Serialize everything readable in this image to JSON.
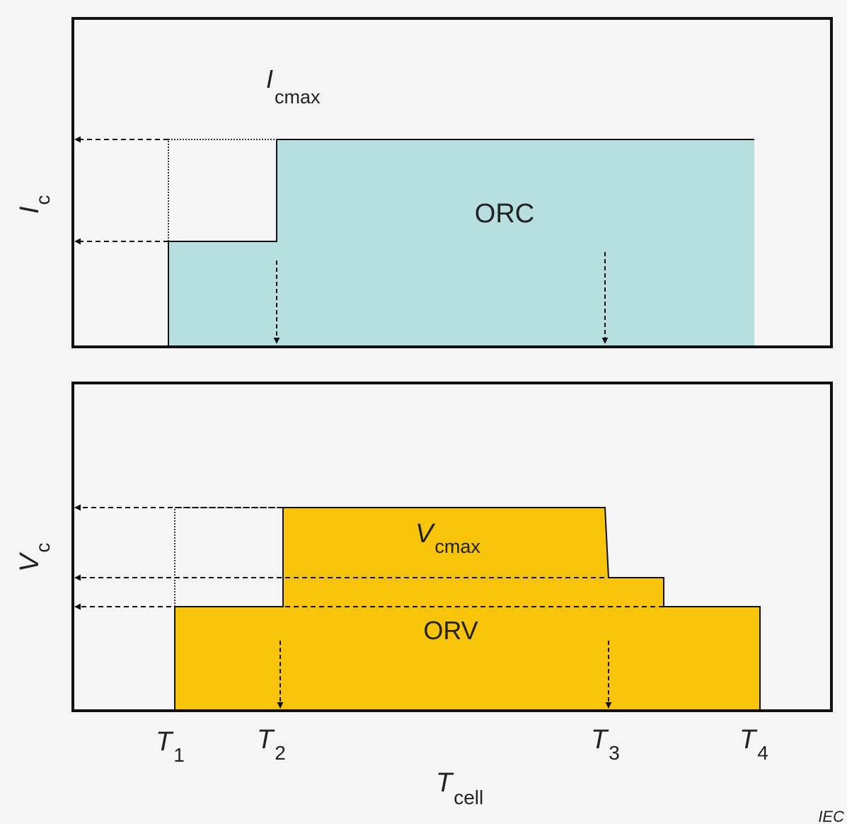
{
  "colors": {
    "background": "#f5f5f5",
    "frame": "#111111",
    "orc_fill": "#b7dfe0",
    "orv_fill": "#f7c409",
    "text": "#222222"
  },
  "top_panel": {
    "y_axis_label": {
      "main": "I",
      "sub": "c"
    },
    "annotation": {
      "main": "I",
      "sub": "cmax"
    },
    "region_label": "ORC"
  },
  "bottom_panel": {
    "y_axis_label": {
      "main": "V",
      "sub": "c"
    },
    "annotation": {
      "main": "V",
      "sub": "cmax"
    },
    "region_label": "ORV"
  },
  "x_axis": {
    "ticks": [
      {
        "main": "T",
        "sub": "1"
      },
      {
        "main": "T",
        "sub": "2"
      },
      {
        "main": "T",
        "sub": "3"
      },
      {
        "main": "T",
        "sub": "4"
      }
    ],
    "label": {
      "main": "T",
      "sub": "cell"
    }
  },
  "credit": "IEC"
}
